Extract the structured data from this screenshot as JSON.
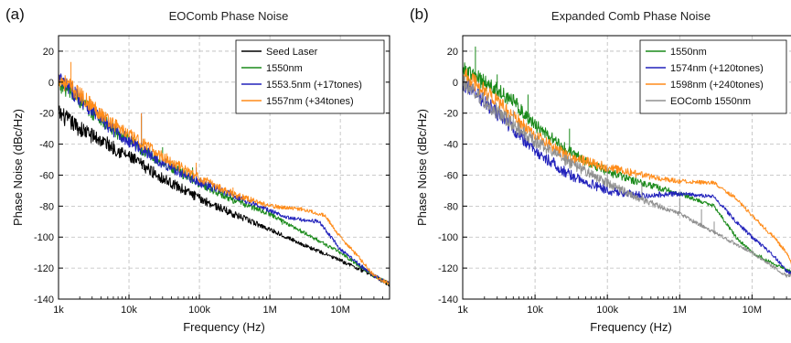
{
  "chart_data": [
    {
      "type": "line",
      "panel_label": "(a)",
      "title": "EOComb Phase Noise",
      "xlabel": "Frequency (Hz)",
      "ylabel": "Phase Noise (dBc/Hz)",
      "x_scale": "log",
      "xlim": [
        1000,
        50000000
      ],
      "ylim": [
        -140,
        30
      ],
      "x_ticks": [
        {
          "value": 1000,
          "label": "1k"
        },
        {
          "value": 10000,
          "label": "10k"
        },
        {
          "value": 100000,
          "label": "100k"
        },
        {
          "value": 1000000,
          "label": "1M"
        },
        {
          "value": 10000000,
          "label": "10M"
        }
      ],
      "y_ticks": [
        -140,
        -120,
        -100,
        -80,
        -60,
        -40,
        -20,
        0,
        20
      ],
      "grid": true,
      "legend_position": "top-right",
      "series": [
        {
          "name": "Seed Laser",
          "color": "#000000",
          "points": [
            [
              1000,
              -20
            ],
            [
              2000,
              -30
            ],
            [
              5000,
              -40
            ],
            [
              10000,
              -48
            ],
            [
              30000,
              -62
            ],
            [
              100000,
              -75
            ],
            [
              300000,
              -85
            ],
            [
              1000000,
              -95
            ],
            [
              3000000,
              -105
            ],
            [
              10000000,
              -115
            ],
            [
              30000000,
              -125
            ],
            [
              50000000,
              -131
            ]
          ],
          "spurs": []
        },
        {
          "name": "1550nm",
          "color": "#1a8a1a",
          "points": [
            [
              1000,
              0
            ],
            [
              2000,
              -12
            ],
            [
              5000,
              -28
            ],
            [
              10000,
              -38
            ],
            [
              30000,
              -52
            ],
            [
              100000,
              -65
            ],
            [
              300000,
              -76
            ],
            [
              1000000,
              -85
            ],
            [
              3000000,
              -97
            ],
            [
              10000000,
              -110
            ],
            [
              30000000,
              -125
            ],
            [
              50000000,
              -130
            ]
          ],
          "spurs": [
            [
              15000,
              -22
            ],
            [
              30000,
              -42
            ],
            [
              80000,
              -55
            ],
            [
              300000,
              -72
            ],
            [
              1500000,
              -92
            ],
            [
              2200000,
              -95
            ],
            [
              3000000,
              -97
            ],
            [
              4000000,
              -100
            ],
            [
              5000000,
              -102
            ]
          ]
        },
        {
          "name": "1553.5nm (+17tones)",
          "color": "#2222bb",
          "points": [
            [
              1000,
              2
            ],
            [
              2000,
              -10
            ],
            [
              5000,
              -28
            ],
            [
              10000,
              -38
            ],
            [
              30000,
              -52
            ],
            [
              100000,
              -65
            ],
            [
              300000,
              -73
            ],
            [
              1000000,
              -83
            ],
            [
              2000000,
              -88
            ],
            [
              5000000,
              -90
            ],
            [
              10000000,
              -108
            ],
            [
              30000000,
              -125
            ],
            [
              50000000,
              -130
            ]
          ],
          "spurs": [
            [
              15000,
              -20
            ],
            [
              90000,
              -55
            ]
          ]
        },
        {
          "name": "1557nm (+34tones)",
          "color": "#ff8c1a",
          "points": [
            [
              1000,
              3
            ],
            [
              2000,
              -8
            ],
            [
              5000,
              -24
            ],
            [
              10000,
              -34
            ],
            [
              30000,
              -48
            ],
            [
              100000,
              -62
            ],
            [
              300000,
              -72
            ],
            [
              1000000,
              -80
            ],
            [
              3000000,
              -82
            ],
            [
              6000000,
              -86
            ],
            [
              10000000,
              -100
            ],
            [
              20000000,
              -115
            ],
            [
              30000000,
              -125
            ],
            [
              50000000,
              -130
            ]
          ],
          "spurs": [
            [
              1500,
              13
            ],
            [
              15000,
              -20
            ],
            [
              90000,
              -52
            ],
            [
              300000,
              -68
            ]
          ]
        }
      ]
    },
    {
      "type": "line",
      "panel_label": "(b)",
      "title": "Expanded Comb Phase Noise",
      "xlabel": "Frequency (Hz)",
      "ylabel": "Phase Noise (dBc/Hz)",
      "x_scale": "log",
      "xlim": [
        1000,
        40000000
      ],
      "ylim": [
        -140,
        30
      ],
      "x_ticks": [
        {
          "value": 1000,
          "label": "1k"
        },
        {
          "value": 10000,
          "label": "10k"
        },
        {
          "value": 100000,
          "label": "100k"
        },
        {
          "value": 1000000,
          "label": "1M"
        },
        {
          "value": 10000000,
          "label": "10M"
        }
      ],
      "y_ticks": [
        -140,
        -120,
        -100,
        -80,
        -60,
        -40,
        -20,
        0,
        20
      ],
      "grid": true,
      "legend_position": "top-right",
      "series": [
        {
          "name": "1550nm",
          "color": "#1a8a1a",
          "points": [
            [
              1000,
              8
            ],
            [
              2000,
              0
            ],
            [
              5000,
              -12
            ],
            [
              10000,
              -28
            ],
            [
              30000,
              -45
            ],
            [
              100000,
              -58
            ],
            [
              300000,
              -65
            ],
            [
              1000000,
              -72
            ],
            [
              3000000,
              -80
            ],
            [
              6000000,
              -100
            ],
            [
              10000000,
              -110
            ],
            [
              20000000,
              -117
            ],
            [
              40000000,
              -124
            ]
          ],
          "spurs": [
            [
              1500,
              23
            ],
            [
              3000,
              5
            ],
            [
              8000,
              -8
            ],
            [
              30000,
              -30
            ]
          ]
        },
        {
          "name": "1574nm (+120tones)",
          "color": "#2222bb",
          "points": [
            [
              1000,
              0
            ],
            [
              2000,
              -12
            ],
            [
              5000,
              -30
            ],
            [
              10000,
              -44
            ],
            [
              30000,
              -60
            ],
            [
              100000,
              -70
            ],
            [
              300000,
              -73
            ],
            [
              1000000,
              -72
            ],
            [
              3000000,
              -74
            ],
            [
              6000000,
              -90
            ],
            [
              10000000,
              -100
            ],
            [
              20000000,
              -112
            ],
            [
              30000000,
              -122
            ],
            [
              40000000,
              -124
            ]
          ],
          "spurs": []
        },
        {
          "name": "1598nm (+240tones)",
          "color": "#ff8c1a",
          "points": [
            [
              1000,
              5
            ],
            [
              2000,
              -5
            ],
            [
              5000,
              -22
            ],
            [
              10000,
              -35
            ],
            [
              30000,
              -48
            ],
            [
              100000,
              -55
            ],
            [
              300000,
              -60
            ],
            [
              1000000,
              -64
            ],
            [
              3000000,
              -65
            ],
            [
              6000000,
              -75
            ],
            [
              10000000,
              -86
            ],
            [
              20000000,
              -100
            ],
            [
              30000000,
              -110
            ],
            [
              40000000,
              -124
            ]
          ],
          "spurs": []
        },
        {
          "name": "EOComb 1550nm",
          "color": "#909090",
          "points": [
            [
              1000,
              0
            ],
            [
              2000,
              -12
            ],
            [
              5000,
              -28
            ],
            [
              10000,
              -38
            ],
            [
              30000,
              -52
            ],
            [
              100000,
              -65
            ],
            [
              300000,
              -76
            ],
            [
              1000000,
              -85
            ],
            [
              3000000,
              -97
            ],
            [
              10000000,
              -110
            ],
            [
              30000000,
              -125
            ],
            [
              40000000,
              -124
            ]
          ],
          "spurs": [
            [
              5000,
              -18
            ],
            [
              100000,
              -55
            ],
            [
              300000,
              -65
            ],
            [
              1000000,
              -75
            ],
            [
              2000000,
              -82
            ],
            [
              3000000,
              -90
            ]
          ]
        }
      ]
    }
  ]
}
